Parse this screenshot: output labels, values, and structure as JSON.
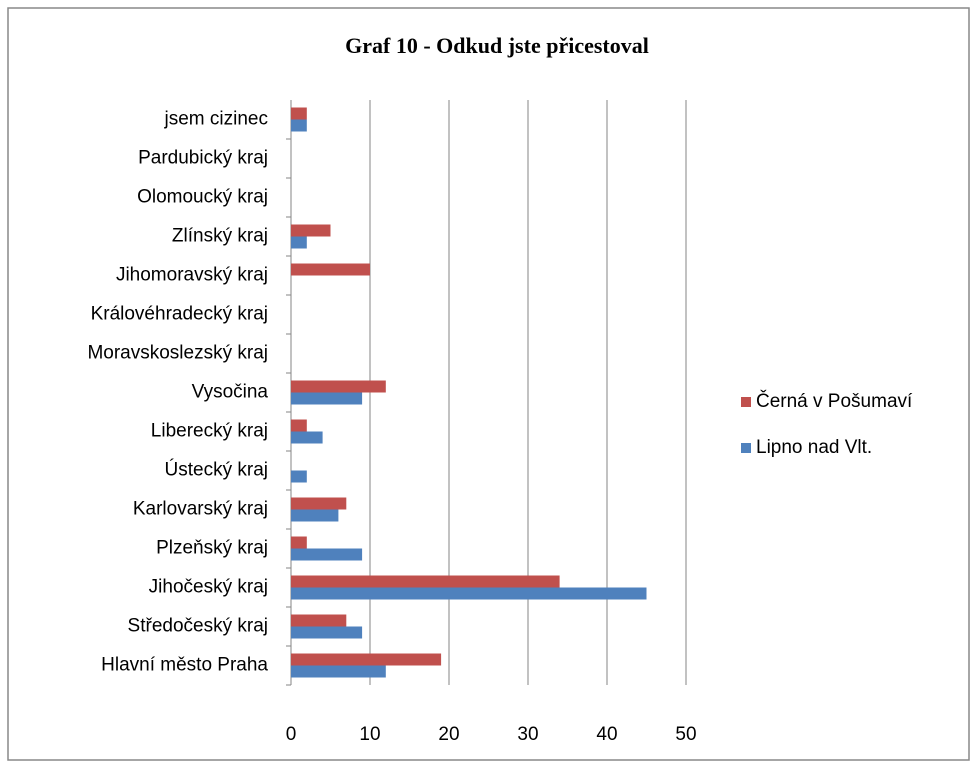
{
  "chart_data": {
    "type": "bar",
    "orientation": "horizontal",
    "title": "Graf 10 - Odkud jste přicestoval",
    "categories": [
      "Hlavní město Praha",
      "Středočeský kraj",
      "Jihočeský kraj",
      "Plzeňský kraj",
      "Karlovarský kraj",
      "Ústecký kraj",
      "Liberecký kraj",
      "Vysočina",
      "Moravskoslezský kraj",
      "Královéhradecký kraj",
      "Jihomoravský kraj",
      "Zlínský kraj",
      "Olomoucký kraj",
      "Pardubický kraj",
      "jsem cizinec"
    ],
    "series": [
      {
        "name": "Černá v Pošumaví",
        "color": "#c0504d",
        "values": [
          19,
          7,
          34,
          2,
          7,
          0,
          2,
          12,
          0,
          0,
          10,
          5,
          0,
          0,
          2
        ]
      },
      {
        "name": "Lipno nad Vlt.",
        "color": "#4f81bd",
        "values": [
          12,
          9,
          45,
          9,
          6,
          2,
          4,
          9,
          0,
          0,
          0,
          2,
          0,
          0,
          2
        ]
      }
    ],
    "xlim": [
      0,
      50
    ],
    "xticks": [
      0,
      10,
      20,
      30,
      40,
      50
    ],
    "grid": true,
    "legend": "right"
  }
}
